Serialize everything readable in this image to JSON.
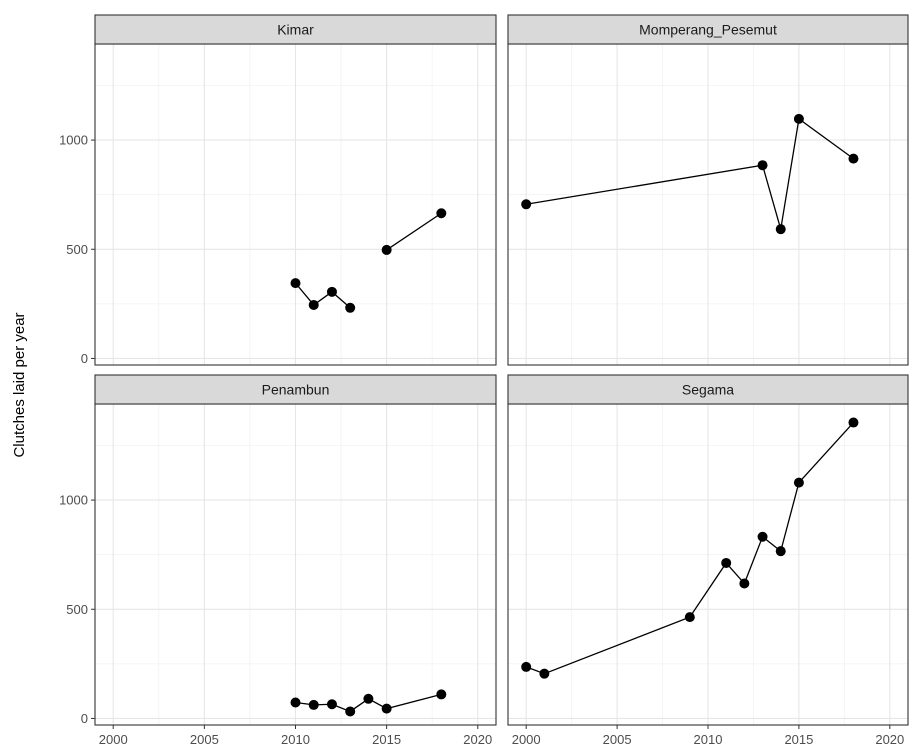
{
  "chart_data": {
    "type": "line",
    "xlabel": "",
    "ylabel": "Clutches laid per year",
    "xlim": [
      1999,
      2021
    ],
    "ylim": [
      -30,
      1440
    ],
    "x_ticks": [
      2000,
      2005,
      2010,
      2015,
      2020
    ],
    "y_ticks": [
      0,
      500,
      1000
    ],
    "grid": true,
    "facets": [
      {
        "name": "Kimar",
        "segments": [
          [
            {
              "x": 2010,
              "y": 345
            },
            {
              "x": 2011,
              "y": 245
            },
            {
              "x": 2012,
              "y": 305
            },
            {
              "x": 2013,
              "y": 232
            }
          ],
          [
            {
              "x": 2015,
              "y": 497
            },
            {
              "x": 2018,
              "y": 665
            }
          ]
        ]
      },
      {
        "name": "Momperang_Pesemut",
        "segments": [
          [
            {
              "x": 2000,
              "y": 706
            },
            {
              "x": 2013,
              "y": 885
            },
            {
              "x": 2014,
              "y": 592
            },
            {
              "x": 2015,
              "y": 1097
            },
            {
              "x": 2018,
              "y": 915
            }
          ]
        ]
      },
      {
        "name": "Penambun",
        "segments": [
          [
            {
              "x": 2010,
              "y": 73
            },
            {
              "x": 2011,
              "y": 62
            },
            {
              "x": 2012,
              "y": 65
            },
            {
              "x": 2013,
              "y": 32
            },
            {
              "x": 2014,
              "y": 90
            },
            {
              "x": 2015,
              "y": 45
            },
            {
              "x": 2018,
              "y": 110
            }
          ]
        ]
      },
      {
        "name": "Segama",
        "segments": [
          [
            {
              "x": 2000,
              "y": 236
            },
            {
              "x": 2001,
              "y": 205
            },
            {
              "x": 2009,
              "y": 464
            },
            {
              "x": 2011,
              "y": 712
            },
            {
              "x": 2012,
              "y": 618
            },
            {
              "x": 2013,
              "y": 832
            },
            {
              "x": 2014,
              "y": 766
            },
            {
              "x": 2015,
              "y": 1080
            },
            {
              "x": 2018,
              "y": 1355
            }
          ]
        ]
      }
    ]
  }
}
